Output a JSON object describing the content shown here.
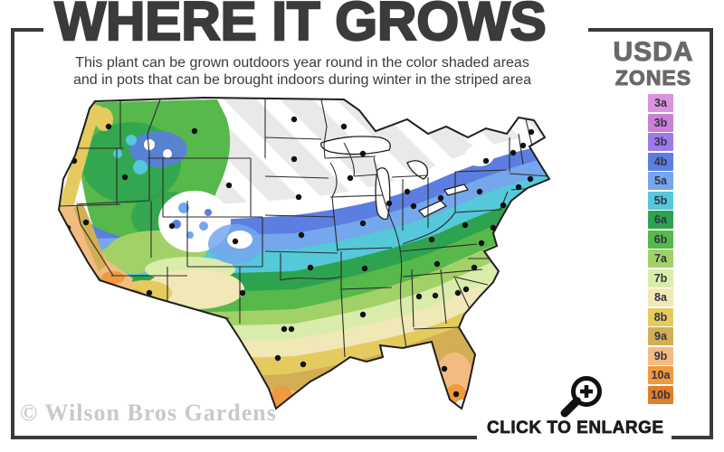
{
  "header": {
    "title": "WHERE IT GROWS",
    "subtitle_line1": "This plant can be grown outdoors year round in the color shaded areas",
    "subtitle_line2": "and in pots that can be brought indoors during winter in the striped area"
  },
  "legend": {
    "title_line1": "USDA",
    "title_line2": "ZONES",
    "zones": [
      {
        "label": "3a",
        "color": "#d994dc"
      },
      {
        "label": "3b",
        "color": "#cc7fd4"
      },
      {
        "label": "3b",
        "color": "#9d7ae9"
      },
      {
        "label": "4b",
        "color": "#5b7ee0"
      },
      {
        "label": "5a",
        "color": "#74a7ec"
      },
      {
        "label": "5b",
        "color": "#55c8da"
      },
      {
        "label": "6a",
        "color": "#2da350"
      },
      {
        "label": "6b",
        "color": "#57b84b"
      },
      {
        "label": "7a",
        "color": "#a2d168"
      },
      {
        "label": "7b",
        "color": "#d9ecab"
      },
      {
        "label": "8a",
        "color": "#f0e8b7"
      },
      {
        "label": "8b",
        "color": "#e5cb5e"
      },
      {
        "label": "9a",
        "color": "#d2ae55"
      },
      {
        "label": "9b",
        "color": "#f2bc80"
      },
      {
        "label": "10a",
        "color": "#f0993e"
      },
      {
        "label": "10b",
        "color": "#e17e28"
      }
    ]
  },
  "chart_data": {
    "type": "heatmap",
    "title": "WHERE IT GROWS",
    "legend_title": "USDA ZONES",
    "legend_entries": [
      "3a",
      "3b",
      "3b",
      "4b",
      "5a",
      "5b",
      "6a",
      "6b",
      "7a",
      "7b",
      "8a",
      "8b",
      "9a",
      "9b",
      "10a",
      "10b"
    ],
    "annotations": [
      "This plant can be grown outdoors year round in the color shaded areas",
      "and in pots that can be brought indoors during winter in the striped area",
      "CLICK TO ENLARGE",
      "© Wilson Bros Gardens"
    ],
    "map_subject": "USDA plant hardiness zones across the continental United States",
    "striped_area_meaning": "too cold - grow in pots brought indoors during winter",
    "legend_position": "right"
  },
  "map": {
    "zone_colors": {
      "striped_bg": "#e9e9e9",
      "stripe": "#ffffff",
      "white_4a": "#ffffff",
      "z4b": "#5b7ee0",
      "z5a": "#74a7ec",
      "z5b": "#55c8da",
      "z6a": "#2da350",
      "z6b": "#57b84b",
      "z7a": "#a2d168",
      "z7b": "#d9ecab",
      "z8a": "#f0e8b7",
      "z8b": "#e5cb5e",
      "z9a": "#d2ae55",
      "z9b": "#f2bc80",
      "z10a": "#f0993e",
      "z10b": "#e17e28",
      "fl_tip_white": "#f0f0f0",
      "lake": "#ffffff",
      "outline": "#1f1f1f",
      "state_line": "#2b2b2b",
      "dot": "#101010"
    }
  },
  "watermark": {
    "text": "© Wilson Bros Gardens"
  },
  "enlarge": {
    "label": "CLICK TO ENLARGE"
  },
  "frame_color": "#3a3a3a"
}
